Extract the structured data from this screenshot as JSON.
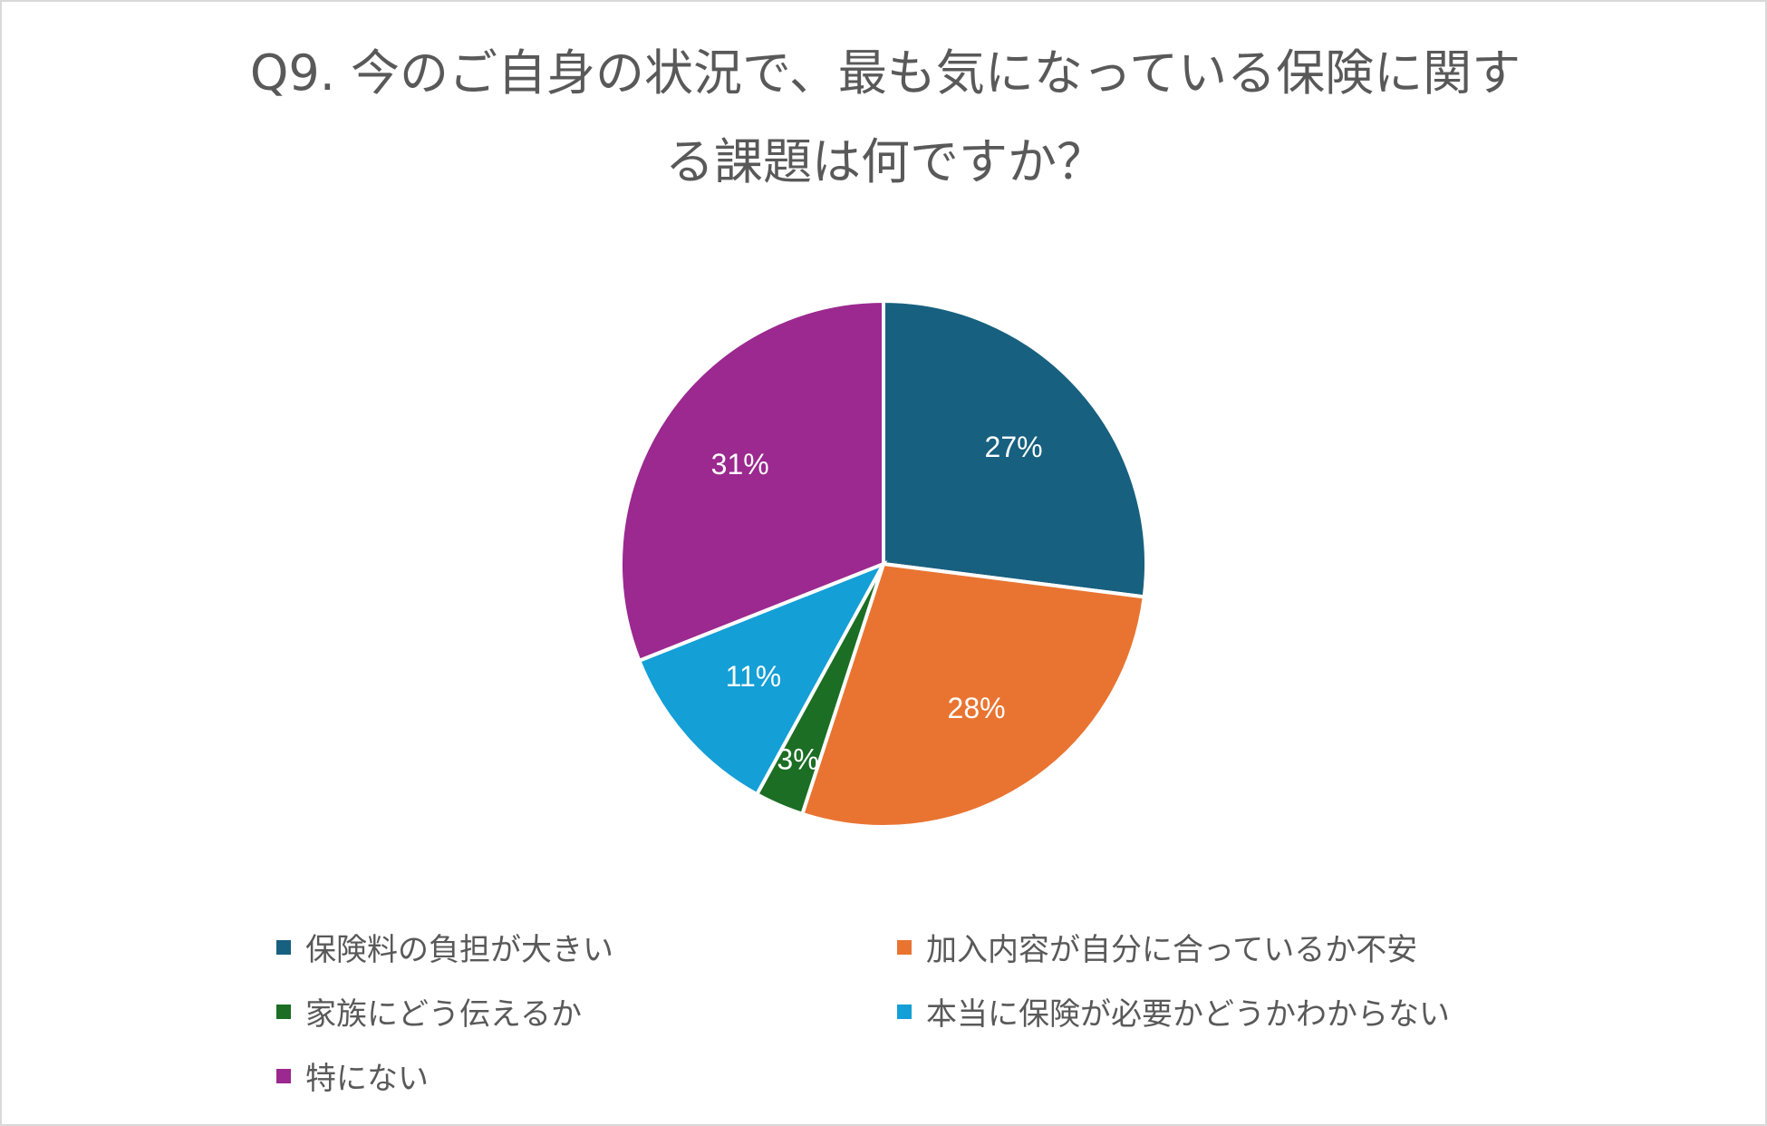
{
  "chart_data": {
    "type": "pie",
    "title": "Q9. 今のご自身の状況で、最も気になっている保険に関する課題は何ですか？",
    "title_lines": [
      "Q9. 今のご自身の状況で、最も気になっている保険に関す",
      "る課題は何ですか？"
    ],
    "slices": [
      {
        "name": "保険料の負担が大きい",
        "value": 27,
        "label": "27%",
        "color": "#17607f"
      },
      {
        "name": "加入内容が自分に合っているか不安",
        "value": 28,
        "label": "28%",
        "color": "#e97431"
      },
      {
        "name": "家族にどう伝えるか",
        "value": 3,
        "label": "3%",
        "color": "#1b6e24"
      },
      {
        "name": "本当に保険が必要かどうかわからない",
        "value": 11,
        "label": "11%",
        "color": "#149fd6"
      },
      {
        "name": "特にない",
        "value": 31,
        "label": "31%",
        "color": "#9b298f"
      }
    ],
    "legend_position": "bottom"
  }
}
